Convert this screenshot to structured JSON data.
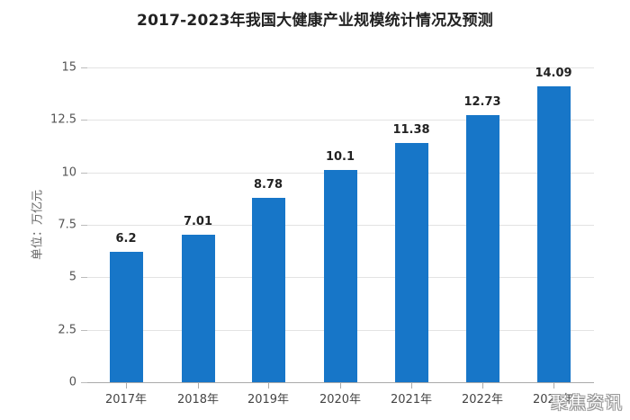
{
  "chart_data": {
    "type": "bar",
    "title": "2017-2023年我国大健康产业规模统计情况及预测",
    "xlabel": "",
    "ylabel": "单位：万亿元",
    "categories": [
      "2017年",
      "2018年",
      "2019年",
      "2020年",
      "2021年",
      "2022年",
      "2023年"
    ],
    "values": [
      6.2,
      7.01,
      8.78,
      10.1,
      11.38,
      12.73,
      14.09
    ],
    "value_labels": [
      "6.2",
      "7.01",
      "8.78",
      "10.1",
      "11.38",
      "12.73",
      "14.09"
    ],
    "ylim": [
      0,
      15
    ],
    "yticks": [
      "0",
      "2.5",
      "5",
      "7.5",
      "10",
      "12.5",
      "15"
    ],
    "grid": true,
    "legend": null,
    "bar_color": "#1776c8"
  },
  "watermark": "聚焦资讯"
}
